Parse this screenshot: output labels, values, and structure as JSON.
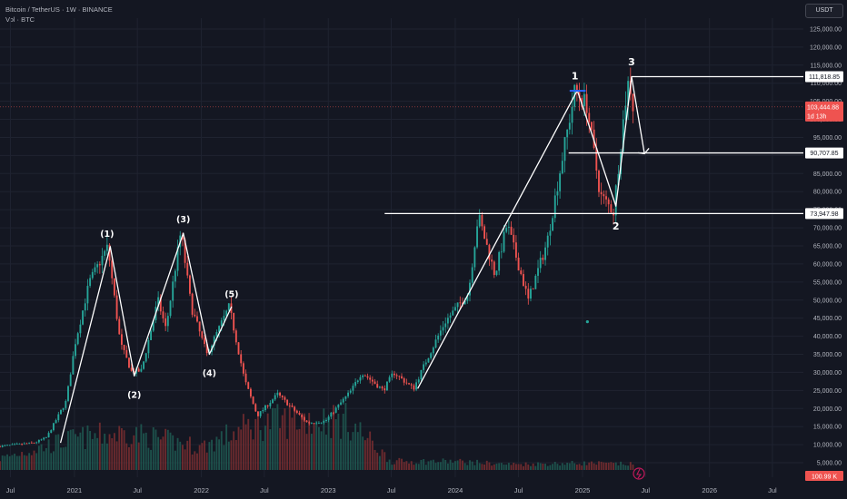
{
  "header": {
    "symbol_line": "Bitcoin / TetherUS · 1W · BINANCE",
    "volume_line": "Vol · BTC",
    "currency": "USDT"
  },
  "colors": {
    "background": "#141722",
    "grid": "#1f2330",
    "up": "#26a69a",
    "down": "#ef5350",
    "drawing": "#ffffff",
    "axis_text": "#b2b5be",
    "marker_blue": "#2962ff"
  },
  "chart_data": {
    "type": "candlestick",
    "exchange": "BINANCE",
    "interval": "1W",
    "y_axis": {
      "ticks": [
        "5,000.00",
        "10,000.00",
        "15,000.00",
        "20,000.00",
        "25,000.00",
        "30,000.00",
        "35,000.00",
        "40,000.00",
        "45,000.00",
        "50,000.00",
        "55,000.00",
        "60,000.00",
        "65,000.00",
        "70,000.00",
        "75,000.00",
        "80,000.00",
        "85,000.00",
        "90,000.00",
        "95,000.00",
        "100,000.00",
        "105,000.00",
        "110,000.00",
        "115,000.00",
        "120,000.00",
        "125,000.00"
      ],
      "range": [
        3000,
        128000
      ]
    },
    "x_axis": {
      "ticks": [
        "Jul",
        "2021",
        "Jul",
        "2022",
        "Jul",
        "2023",
        "Jul",
        "2024",
        "Jul",
        "2025",
        "Jul",
        "2026",
        "Jul"
      ],
      "range": [
        "2020-06-01",
        "2026-09-28"
      ]
    },
    "price_path": [
      [
        "2020-06-01",
        9500
      ],
      [
        "2020-09-15",
        10500
      ],
      [
        "2020-10-20",
        12000
      ],
      [
        "2020-12-15",
        22000
      ],
      [
        "2021-01-10",
        38000
      ],
      [
        "2021-02-20",
        55000
      ],
      [
        "2021-04-14",
        64800
      ],
      [
        "2021-05-20",
        38000
      ],
      [
        "2021-06-22",
        30000
      ],
      [
        "2021-07-20",
        30500
      ],
      [
        "2021-09-05",
        50000
      ],
      [
        "2021-09-28",
        42000
      ],
      [
        "2021-11-10",
        69000
      ],
      [
        "2021-12-10",
        48000
      ],
      [
        "2022-01-24",
        35000
      ],
      [
        "2022-03-29",
        48200
      ],
      [
        "2022-05-12",
        28000
      ],
      [
        "2022-06-18",
        18000
      ],
      [
        "2022-08-15",
        24000
      ],
      [
        "2022-11-09",
        16000
      ],
      [
        "2022-12-30",
        16500
      ],
      [
        "2023-03-15",
        25000
      ],
      [
        "2023-04-14",
        30000
      ],
      [
        "2023-06-15",
        25000
      ],
      [
        "2023-07-15",
        30000
      ],
      [
        "2023-09-10",
        25500
      ],
      [
        "2023-10-25",
        35000
      ],
      [
        "2023-12-10",
        44000
      ],
      [
        "2024-02-15",
        52000
      ],
      [
        "2024-03-14",
        73500
      ],
      [
        "2024-05-01",
        57000
      ],
      [
        "2024-06-05",
        71000
      ],
      [
        "2024-08-05",
        50000
      ],
      [
        "2024-09-28",
        66000
      ],
      [
        "2024-11-12",
        90000
      ],
      [
        "2024-12-17",
        108000
      ],
      [
        "2025-01-20",
        104000
      ],
      [
        "2025-02-28",
        79000
      ],
      [
        "2025-04-07",
        74500
      ],
      [
        "2025-05-10",
        104000
      ],
      [
        "2025-05-22",
        111800
      ],
      [
        "2025-06-01",
        103444
      ]
    ],
    "volume_levels": [
      [
        "2020-06-01",
        0.2
      ],
      [
        "2021-01-01",
        0.55
      ],
      [
        "2021-06-01",
        0.65
      ],
      [
        "2022-01-01",
        0.4
      ],
      [
        "2022-06-01",
        0.8
      ],
      [
        "2022-11-01",
        0.9
      ],
      [
        "2023-03-01",
        0.85
      ],
      [
        "2023-07-01",
        0.15
      ],
      [
        "2024-01-01",
        0.15
      ],
      [
        "2024-06-01",
        0.1
      ],
      [
        "2025-01-01",
        0.12
      ],
      [
        "2025-06-01",
        0.1
      ]
    ],
    "horizontal_levels": [
      {
        "price": 111818.85,
        "label": "111,818.85",
        "start": "2025-05-22"
      },
      {
        "price": 90707.85,
        "label": "90,707.85",
        "start": "2024-11-22"
      },
      {
        "price": 73947.98,
        "label": "73,947.98",
        "start": "2023-06-12"
      }
    ],
    "current_price": {
      "price": 103444.88,
      "label": "103,444.88",
      "countdown": "1d 13h"
    },
    "volume_badge": "100.99 K",
    "drawings": [
      {
        "type": "polyline",
        "points": [
          [
            "2020-11-22",
            10500
          ],
          [
            "2021-04-14",
            64800
          ],
          [
            "2021-06-22",
            29000
          ],
          [
            "2021-11-10",
            68500
          ],
          [
            "2022-01-24",
            35000
          ],
          [
            "2022-03-29",
            48200
          ]
        ]
      },
      {
        "type": "polyline",
        "points": [
          [
            "2023-09-15",
            25500
          ],
          [
            "2024-12-17",
            108000
          ],
          [
            "2025-04-07",
            76000
          ],
          [
            "2025-05-22",
            111800
          ],
          [
            "2025-06-28",
            90500
          ]
        ]
      },
      {
        "type": "arrowhead",
        "at": [
          "2025-06-28",
          90500
        ]
      }
    ],
    "wave_labels": [
      {
        "text": "(1)",
        "date": "2021-04-05",
        "price": 68500
      },
      {
        "text": "(2)",
        "date": "2021-06-22",
        "price": 24000
      },
      {
        "text": "(3)",
        "date": "2021-11-10",
        "price": 72500
      },
      {
        "text": "(4)",
        "date": "2022-01-24",
        "price": 30000
      },
      {
        "text": "(5)",
        "date": "2022-03-29",
        "price": 51800
      },
      {
        "text": "1",
        "date": "2024-12-10",
        "price": 112000
      },
      {
        "text": "2",
        "date": "2025-04-07",
        "price": 70500
      },
      {
        "text": "3",
        "date": "2025-05-22",
        "price": 116000
      }
    ],
    "markers": [
      {
        "type": "segment",
        "from": [
          "2024-11-25",
          107900
        ],
        "to": [
          "2025-01-10",
          107900
        ]
      },
      {
        "type": "dot",
        "at": [
          "2025-01-15",
          44000
        ]
      }
    ]
  }
}
